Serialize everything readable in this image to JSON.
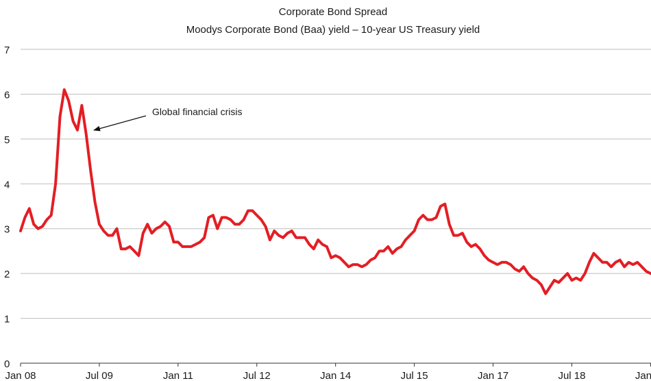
{
  "chart_data": {
    "type": "line",
    "title": "Corporate Bond Spread",
    "subtitle": "Moodys Corporate Bond (Baa) yield – 10-year US Treasury yield",
    "xlabel": "",
    "ylabel": "",
    "ylim": [
      0,
      7
    ],
    "yticks": [
      "0",
      "1",
      "2",
      "3",
      "4",
      "5",
      "6",
      "7"
    ],
    "xticks": [
      "Jan 08",
      "Jul 09",
      "Jan 11",
      "Jul 12",
      "Jan 14",
      "Jul 15",
      "Jan 17",
      "Jul 18",
      "Jan 20"
    ],
    "grid": true,
    "line_color": "#e31e24",
    "series": [
      {
        "x_start": "Jan 08",
        "x_step": "1 month",
        "values": [
          2.95,
          3.25,
          3.45,
          3.1,
          3.0,
          3.05,
          3.2,
          3.3,
          4.0,
          5.5,
          6.1,
          5.85,
          5.4,
          5.2,
          5.75,
          5.1,
          4.3,
          3.6,
          3.1,
          2.95,
          2.85,
          2.85,
          3.0,
          2.55,
          2.55,
          2.6,
          2.5,
          2.4,
          2.9,
          3.1,
          2.9,
          3.0,
          3.05,
          3.15,
          3.05,
          2.7,
          2.7,
          2.6,
          2.6,
          2.6,
          2.65,
          2.7,
          2.8,
          3.25,
          3.3,
          3.0,
          3.25,
          3.25,
          3.2,
          3.1,
          3.1,
          3.2,
          3.4,
          3.4,
          3.3,
          3.2,
          3.05,
          2.75,
          2.95,
          2.85,
          2.8,
          2.9,
          2.95,
          2.8,
          2.8,
          2.8,
          2.65,
          2.55,
          2.75,
          2.65,
          2.6,
          2.35,
          2.4,
          2.35,
          2.25,
          2.15,
          2.2,
          2.2,
          2.15,
          2.2,
          2.3,
          2.35,
          2.5,
          2.5,
          2.6,
          2.45,
          2.55,
          2.6,
          2.75,
          2.85,
          2.95,
          3.2,
          3.3,
          3.2,
          3.2,
          3.25,
          3.5,
          3.55,
          3.1,
          2.85,
          2.85,
          2.9,
          2.7,
          2.6,
          2.65,
          2.55,
          2.4,
          2.3,
          2.25,
          2.2,
          2.25,
          2.25,
          2.2,
          2.1,
          2.05,
          2.15,
          2.0,
          1.9,
          1.85,
          1.75,
          1.55,
          1.7,
          1.85,
          1.8,
          1.9,
          2.0,
          1.85,
          1.9,
          1.85,
          2.0,
          2.25,
          2.45,
          2.35,
          2.25,
          2.25,
          2.15,
          2.25,
          2.3,
          2.15,
          2.25,
          2.2,
          2.25,
          2.15,
          2.05,
          2.0
        ]
      }
    ],
    "annotations": [
      {
        "text": "Global financial crisis",
        "points_to": "Nov 08"
      }
    ]
  }
}
